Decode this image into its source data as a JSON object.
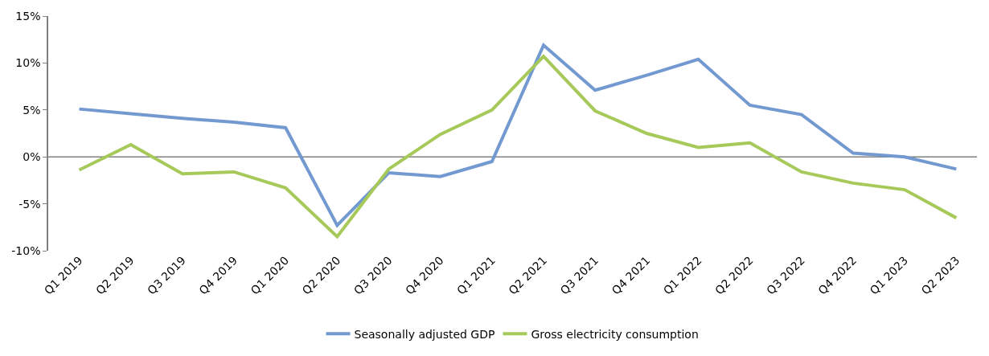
{
  "chart_data": {
    "type": "line",
    "categories": [
      "Q1 2019",
      "Q2 2019",
      "Q3 2019",
      "Q4 2019",
      "Q1 2020",
      "Q2 2020",
      "Q3 2020",
      "Q4 2020",
      "Q1 2021",
      "Q2 2021",
      "Q3 2021",
      "Q4 2021",
      "Q1 2022",
      "Q2 2022",
      "Q3 2022",
      "Q4 2022",
      "Q1 2023",
      "Q2 2023"
    ],
    "series": [
      {
        "name": "Seasonally adjusted GDP",
        "color": "#7399d1",
        "values": [
          5.1,
          4.6,
          4.1,
          3.7,
          3.1,
          -7.3,
          -1.7,
          -2.1,
          -0.5,
          11.9,
          7.1,
          8.7,
          10.4,
          5.5,
          4.5,
          0.4,
          0.0,
          -1.3
        ]
      },
      {
        "name": "Gross electricity consumption",
        "color": "#a6c95a",
        "values": [
          -1.4,
          1.3,
          -1.8,
          -1.6,
          -3.3,
          -8.5,
          -1.3,
          2.4,
          5.0,
          10.7,
          4.9,
          2.5,
          1.0,
          1.5,
          -1.6,
          -2.8,
          -3.5,
          -6.5
        ]
      }
    ],
    "ylim": [
      -10,
      15
    ],
    "yticks": [
      {
        "value": -10,
        "label": "-10%"
      },
      {
        "value": -5,
        "label": "-5%"
      },
      {
        "value": 0,
        "label": "0%"
      },
      {
        "value": 5,
        "label": "5%"
      },
      {
        "value": 10,
        "label": "10%"
      },
      {
        "value": 15,
        "label": "15%"
      }
    ],
    "ref_lines": [
      {
        "axis": "y",
        "value": 0,
        "color": "#808080"
      }
    ],
    "grid": false,
    "legend": "bottom",
    "marker": "none",
    "line_style": "solid"
  }
}
